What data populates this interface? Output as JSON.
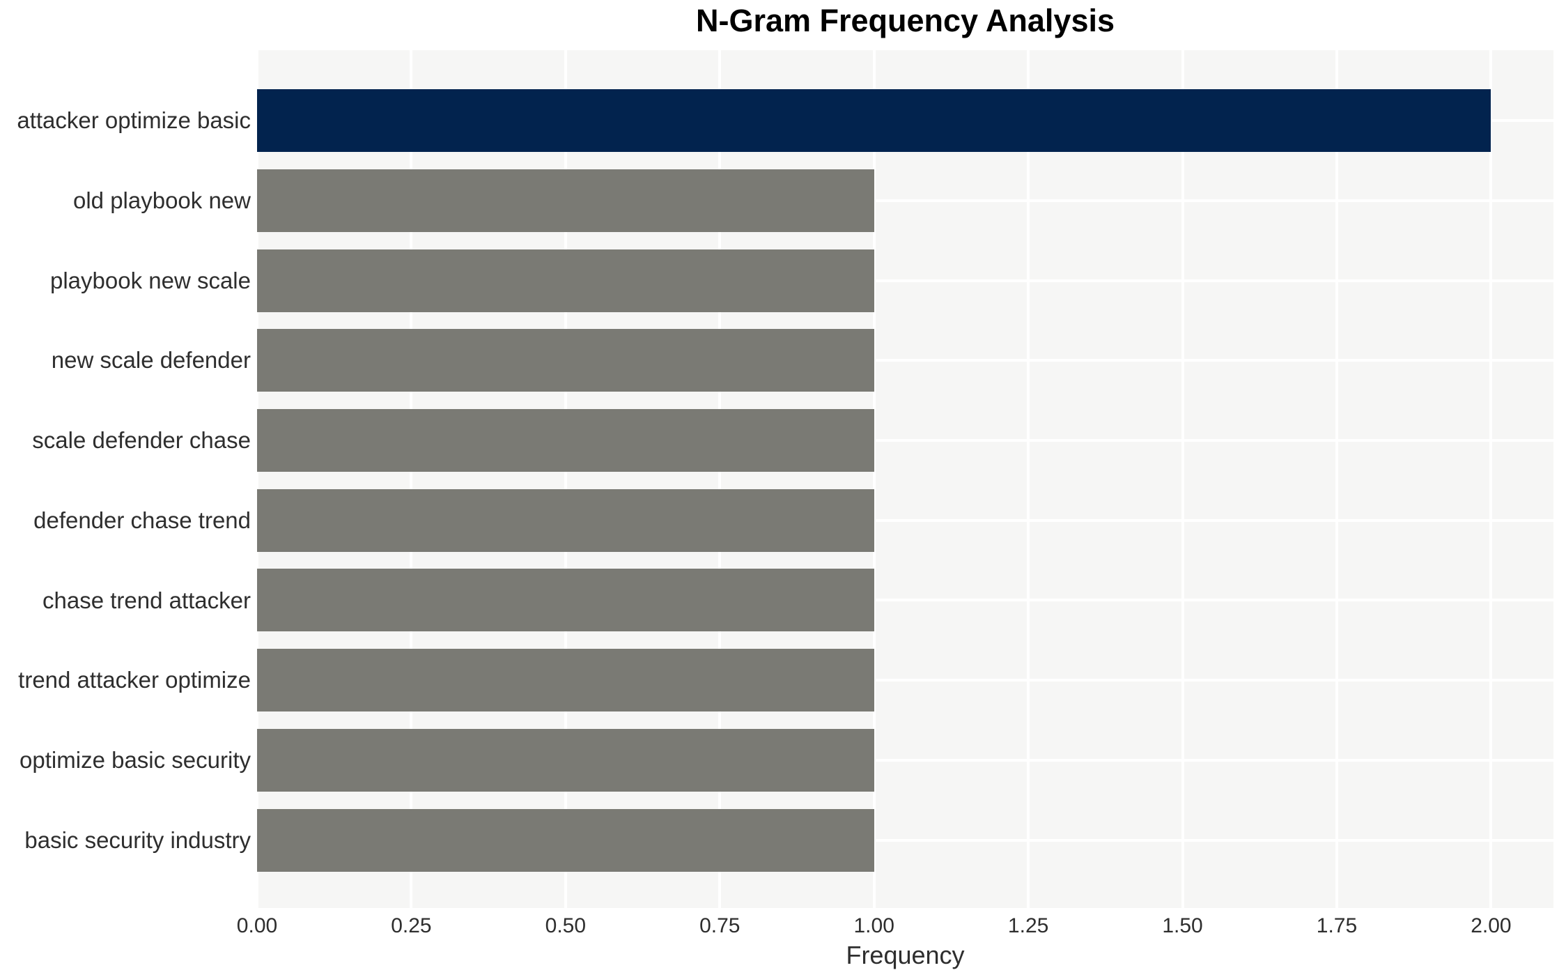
{
  "chart_data": {
    "type": "bar",
    "orientation": "horizontal",
    "title": "N-Gram Frequency Analysis",
    "xlabel": "Frequency",
    "ylabel": "",
    "categories": [
      "attacker optimize basic",
      "old playbook new",
      "playbook new scale",
      "new scale defender",
      "scale defender chase",
      "defender chase trend",
      "chase trend attacker",
      "trend attacker optimize",
      "optimize basic security",
      "basic security industry"
    ],
    "values": [
      2,
      1,
      1,
      1,
      1,
      1,
      1,
      1,
      1,
      1
    ],
    "bar_colors": [
      "#02234e",
      "#7a7a74",
      "#7a7a74",
      "#7a7a74",
      "#7a7a74",
      "#7a7a74",
      "#7a7a74",
      "#7a7a74",
      "#7a7a74",
      "#7a7a74"
    ],
    "xticks": [
      "0.00",
      "0.25",
      "0.50",
      "0.75",
      "1.00",
      "1.25",
      "1.50",
      "1.75",
      "2.00"
    ],
    "xlim": [
      0,
      2.1
    ],
    "grid": true,
    "legend_position": "none"
  },
  "colors": {
    "highlight_bar": "#02234e",
    "default_bar": "#7a7a74",
    "plot_background": "#f6f6f5",
    "gridline": "#ffffff",
    "tick_text": "#2e2e2e",
    "title_text": "#000000",
    "figure_background": "#ffffff"
  }
}
